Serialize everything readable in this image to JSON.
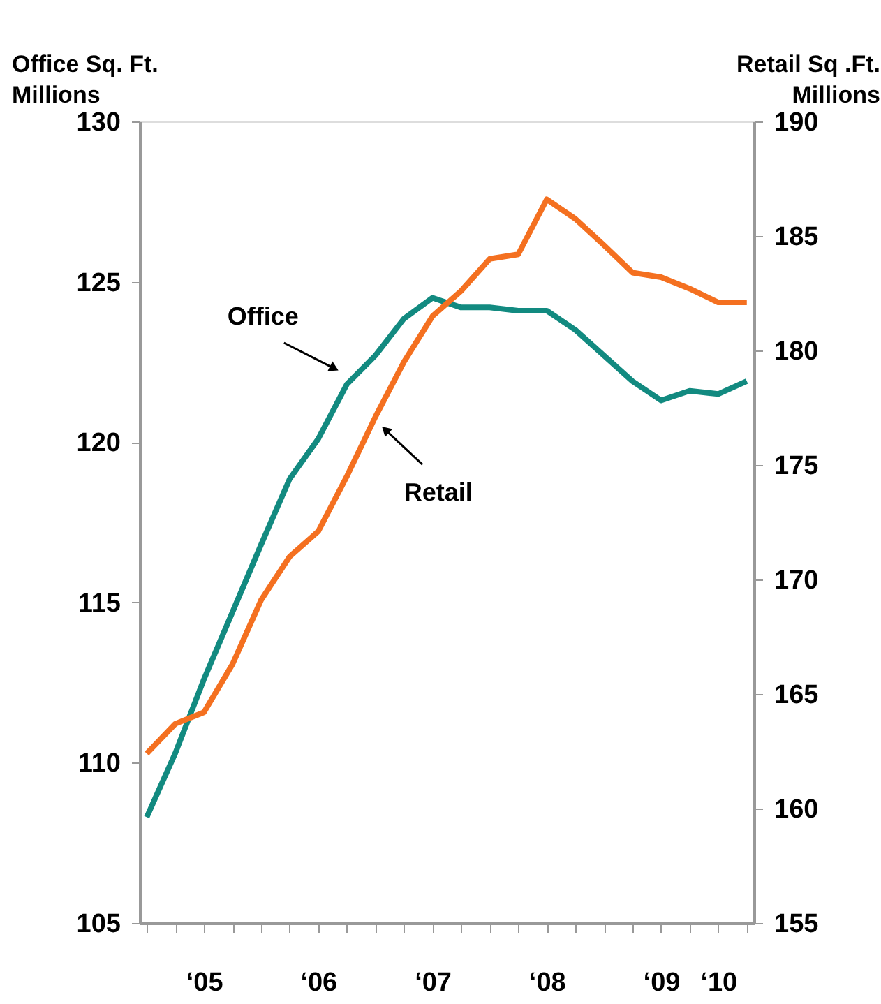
{
  "chart_data": {
    "type": "line",
    "ylabel": "Office Sq. Ft.\nMillions",
    "y2label": "Retail Sq .Ft.\nMillions",
    "categories": [
      null,
      null,
      "‘05",
      null,
      null,
      null,
      "‘06",
      null,
      null,
      null,
      "‘07",
      null,
      null,
      null,
      "‘08",
      null,
      null,
      null,
      "‘09",
      null,
      "‘10",
      null
    ],
    "series": [
      {
        "name": "Office",
        "color": "#128a80",
        "values": [
          108.3,
          110.3,
          112.6,
          114.7,
          116.8,
          118.85,
          120.1,
          121.8,
          122.7,
          123.85,
          124.5,
          124.2,
          124.2,
          124.1,
          124.1,
          123.5,
          122.7,
          121.9,
          121.3,
          121.6,
          121.5,
          121.9
        ]
      },
      {
        "name": "Retail",
        "color": "#f47020",
        "axis": "y2",
        "values": [
          162.4,
          163.7,
          164.2,
          166.3,
          169.1,
          171.0,
          172.1,
          174.5,
          177.1,
          179.5,
          181.5,
          182.6,
          184.0,
          184.2,
          186.6,
          185.75,
          184.6,
          183.4,
          183.2,
          182.7,
          182.1,
          182.1
        ]
      }
    ],
    "ylim": [
      105,
      130
    ],
    "yticks": [
      105,
      110,
      115,
      120,
      125,
      130
    ],
    "y2lim": [
      155,
      190
    ],
    "y2ticks": [
      155,
      160,
      165,
      170,
      175,
      180,
      185,
      190
    ],
    "grid": false,
    "marker": "none",
    "line_style": "solid"
  }
}
